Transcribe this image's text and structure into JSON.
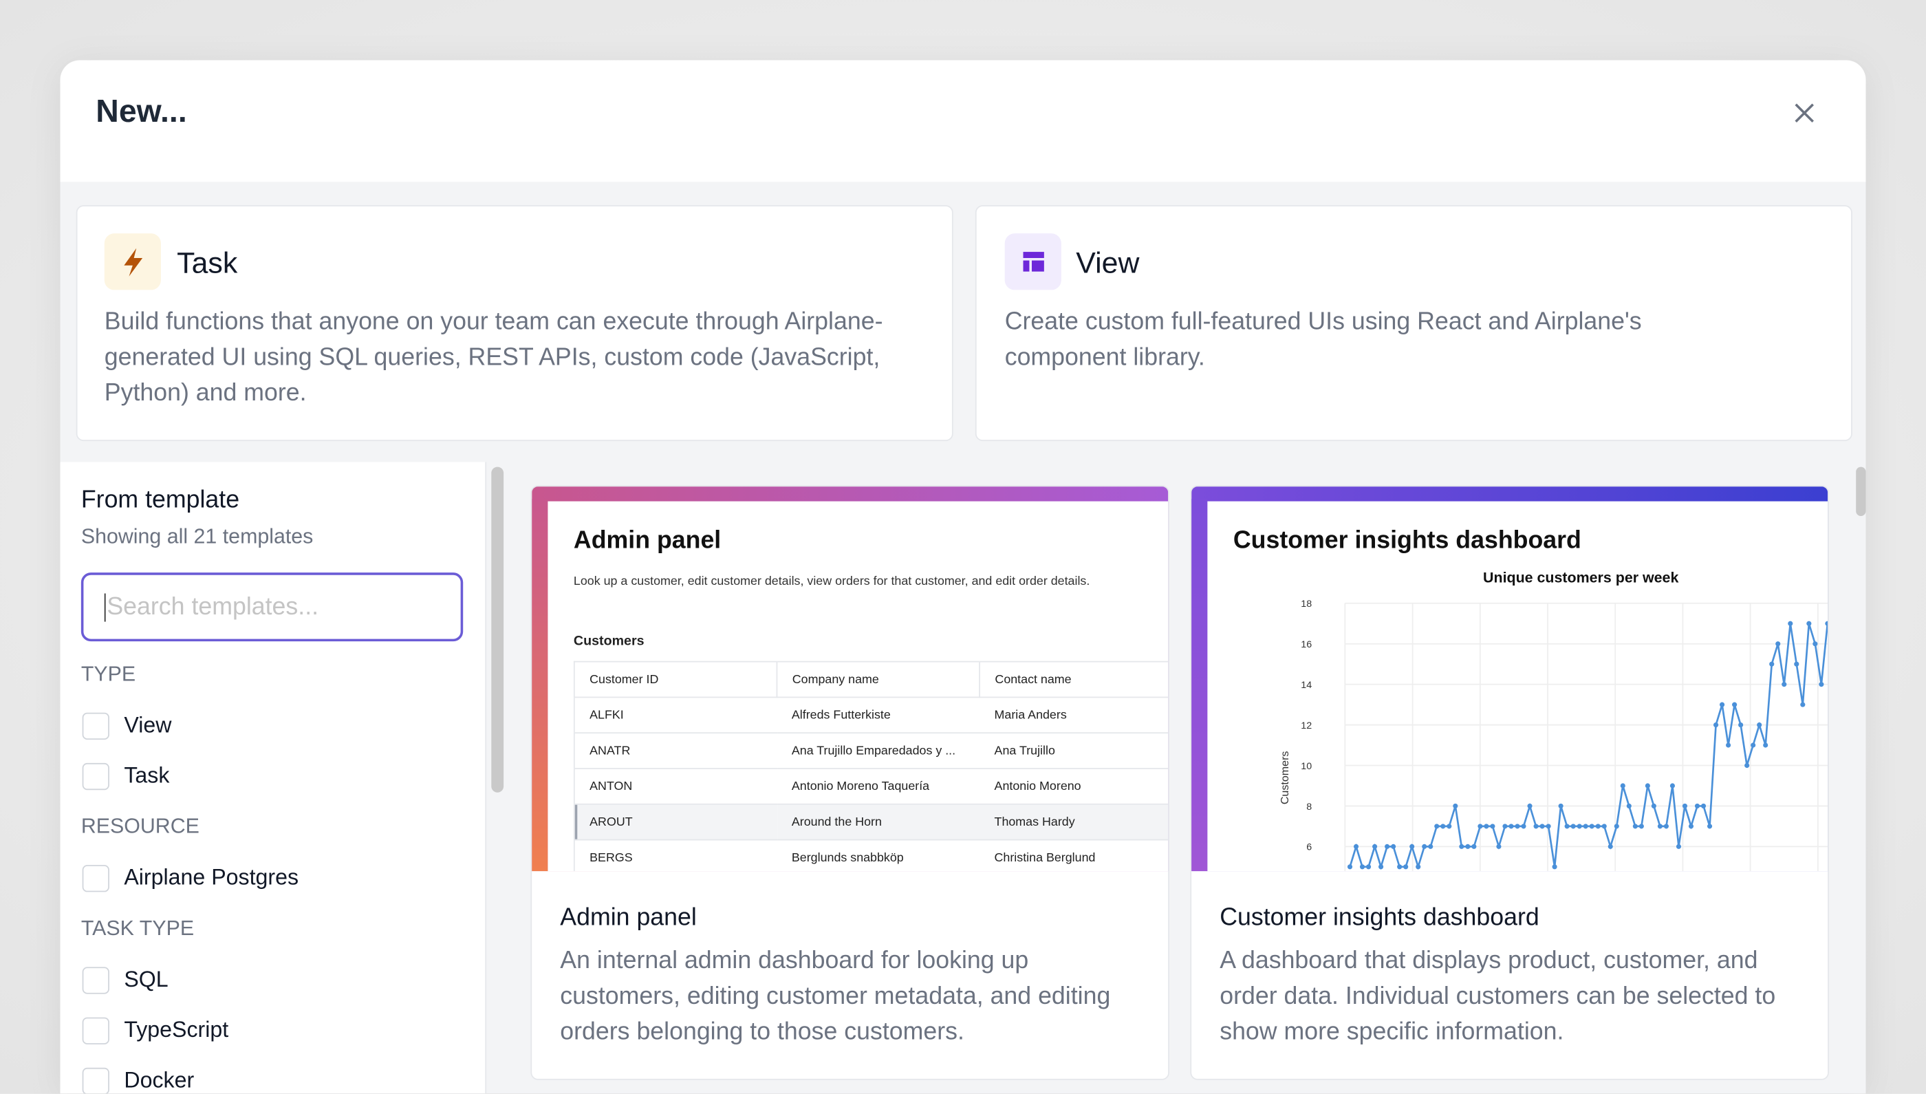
{
  "header": {
    "title": "New..."
  },
  "options": [
    {
      "title": "Task",
      "description": "Build functions that anyone on your team can execute through Airplane-generated UI using SQL queries, REST APIs, custom code (JavaScript, Python) and more."
    },
    {
      "title": "View",
      "description": "Create custom full-featured UIs using React and Airplane's component library."
    }
  ],
  "sidebar": {
    "title": "From template",
    "subtitle": "Showing all 21 templates",
    "search_placeholder": "Search templates...",
    "groups": [
      {
        "label": "TYPE",
        "items": [
          "View",
          "Task"
        ]
      },
      {
        "label": "RESOURCE",
        "items": [
          "Airplane Postgres"
        ]
      },
      {
        "label": "TASK TYPE",
        "items": [
          "SQL",
          "TypeScript",
          "Docker"
        ]
      }
    ]
  },
  "templates": [
    {
      "preview": {
        "title": "Admin panel",
        "description": "Look up a customer, edit customer details, view orders for that customer, and edit order details.",
        "table_title": "Customers",
        "columns": [
          "Customer ID",
          "Company name",
          "Contact name"
        ],
        "rows": [
          [
            "ALFKI",
            "Alfreds Futterkiste",
            "Maria Anders"
          ],
          [
            "ANATR",
            "Ana Trujillo Emparedados y ...",
            "Ana Trujillo"
          ],
          [
            "ANTON",
            "Antonio Moreno Taquería",
            "Antonio Moreno"
          ],
          [
            "AROUT",
            "Around the Horn",
            "Thomas Hardy"
          ],
          [
            "BERGS",
            "Berglunds snabbköp",
            "Christina Berglund"
          ]
        ]
      },
      "title": "Admin panel",
      "description": "An internal admin dashboard for looking up customers, editing customer metadata, and editing orders belonging to those customers."
    },
    {
      "preview": {
        "title": "Customer insights dashboard",
        "chart_data": {
          "type": "line",
          "title": "Unique customers per week",
          "y_label": "Customers",
          "color": "#4a90d9",
          "ylim": [
            4,
            18
          ],
          "yticks": [
            6,
            8,
            10,
            12,
            14,
            16,
            18
          ],
          "grid": true,
          "values": [
            5,
            6,
            5,
            5,
            6,
            5,
            6,
            6,
            5,
            5,
            6,
            5,
            6,
            6,
            7,
            7,
            7,
            8,
            6,
            6,
            6,
            7,
            7,
            7,
            6,
            7,
            7,
            7,
            7,
            8,
            7,
            7,
            7,
            5,
            8,
            7,
            7,
            7,
            7,
            7,
            7,
            7,
            6,
            7,
            9,
            8,
            7,
            7,
            9,
            8,
            7,
            7,
            9,
            6,
            8,
            7,
            8,
            8,
            7,
            12,
            13,
            11,
            13,
            12,
            10,
            11,
            12,
            11,
            15,
            16,
            14,
            17,
            15,
            13,
            17,
            16,
            14,
            17
          ]
        }
      },
      "title": "Customer insights dashboard",
      "description": "A dashboard that displays product, customer, and order data. Individual customers can be selected to show more specific information."
    }
  ]
}
